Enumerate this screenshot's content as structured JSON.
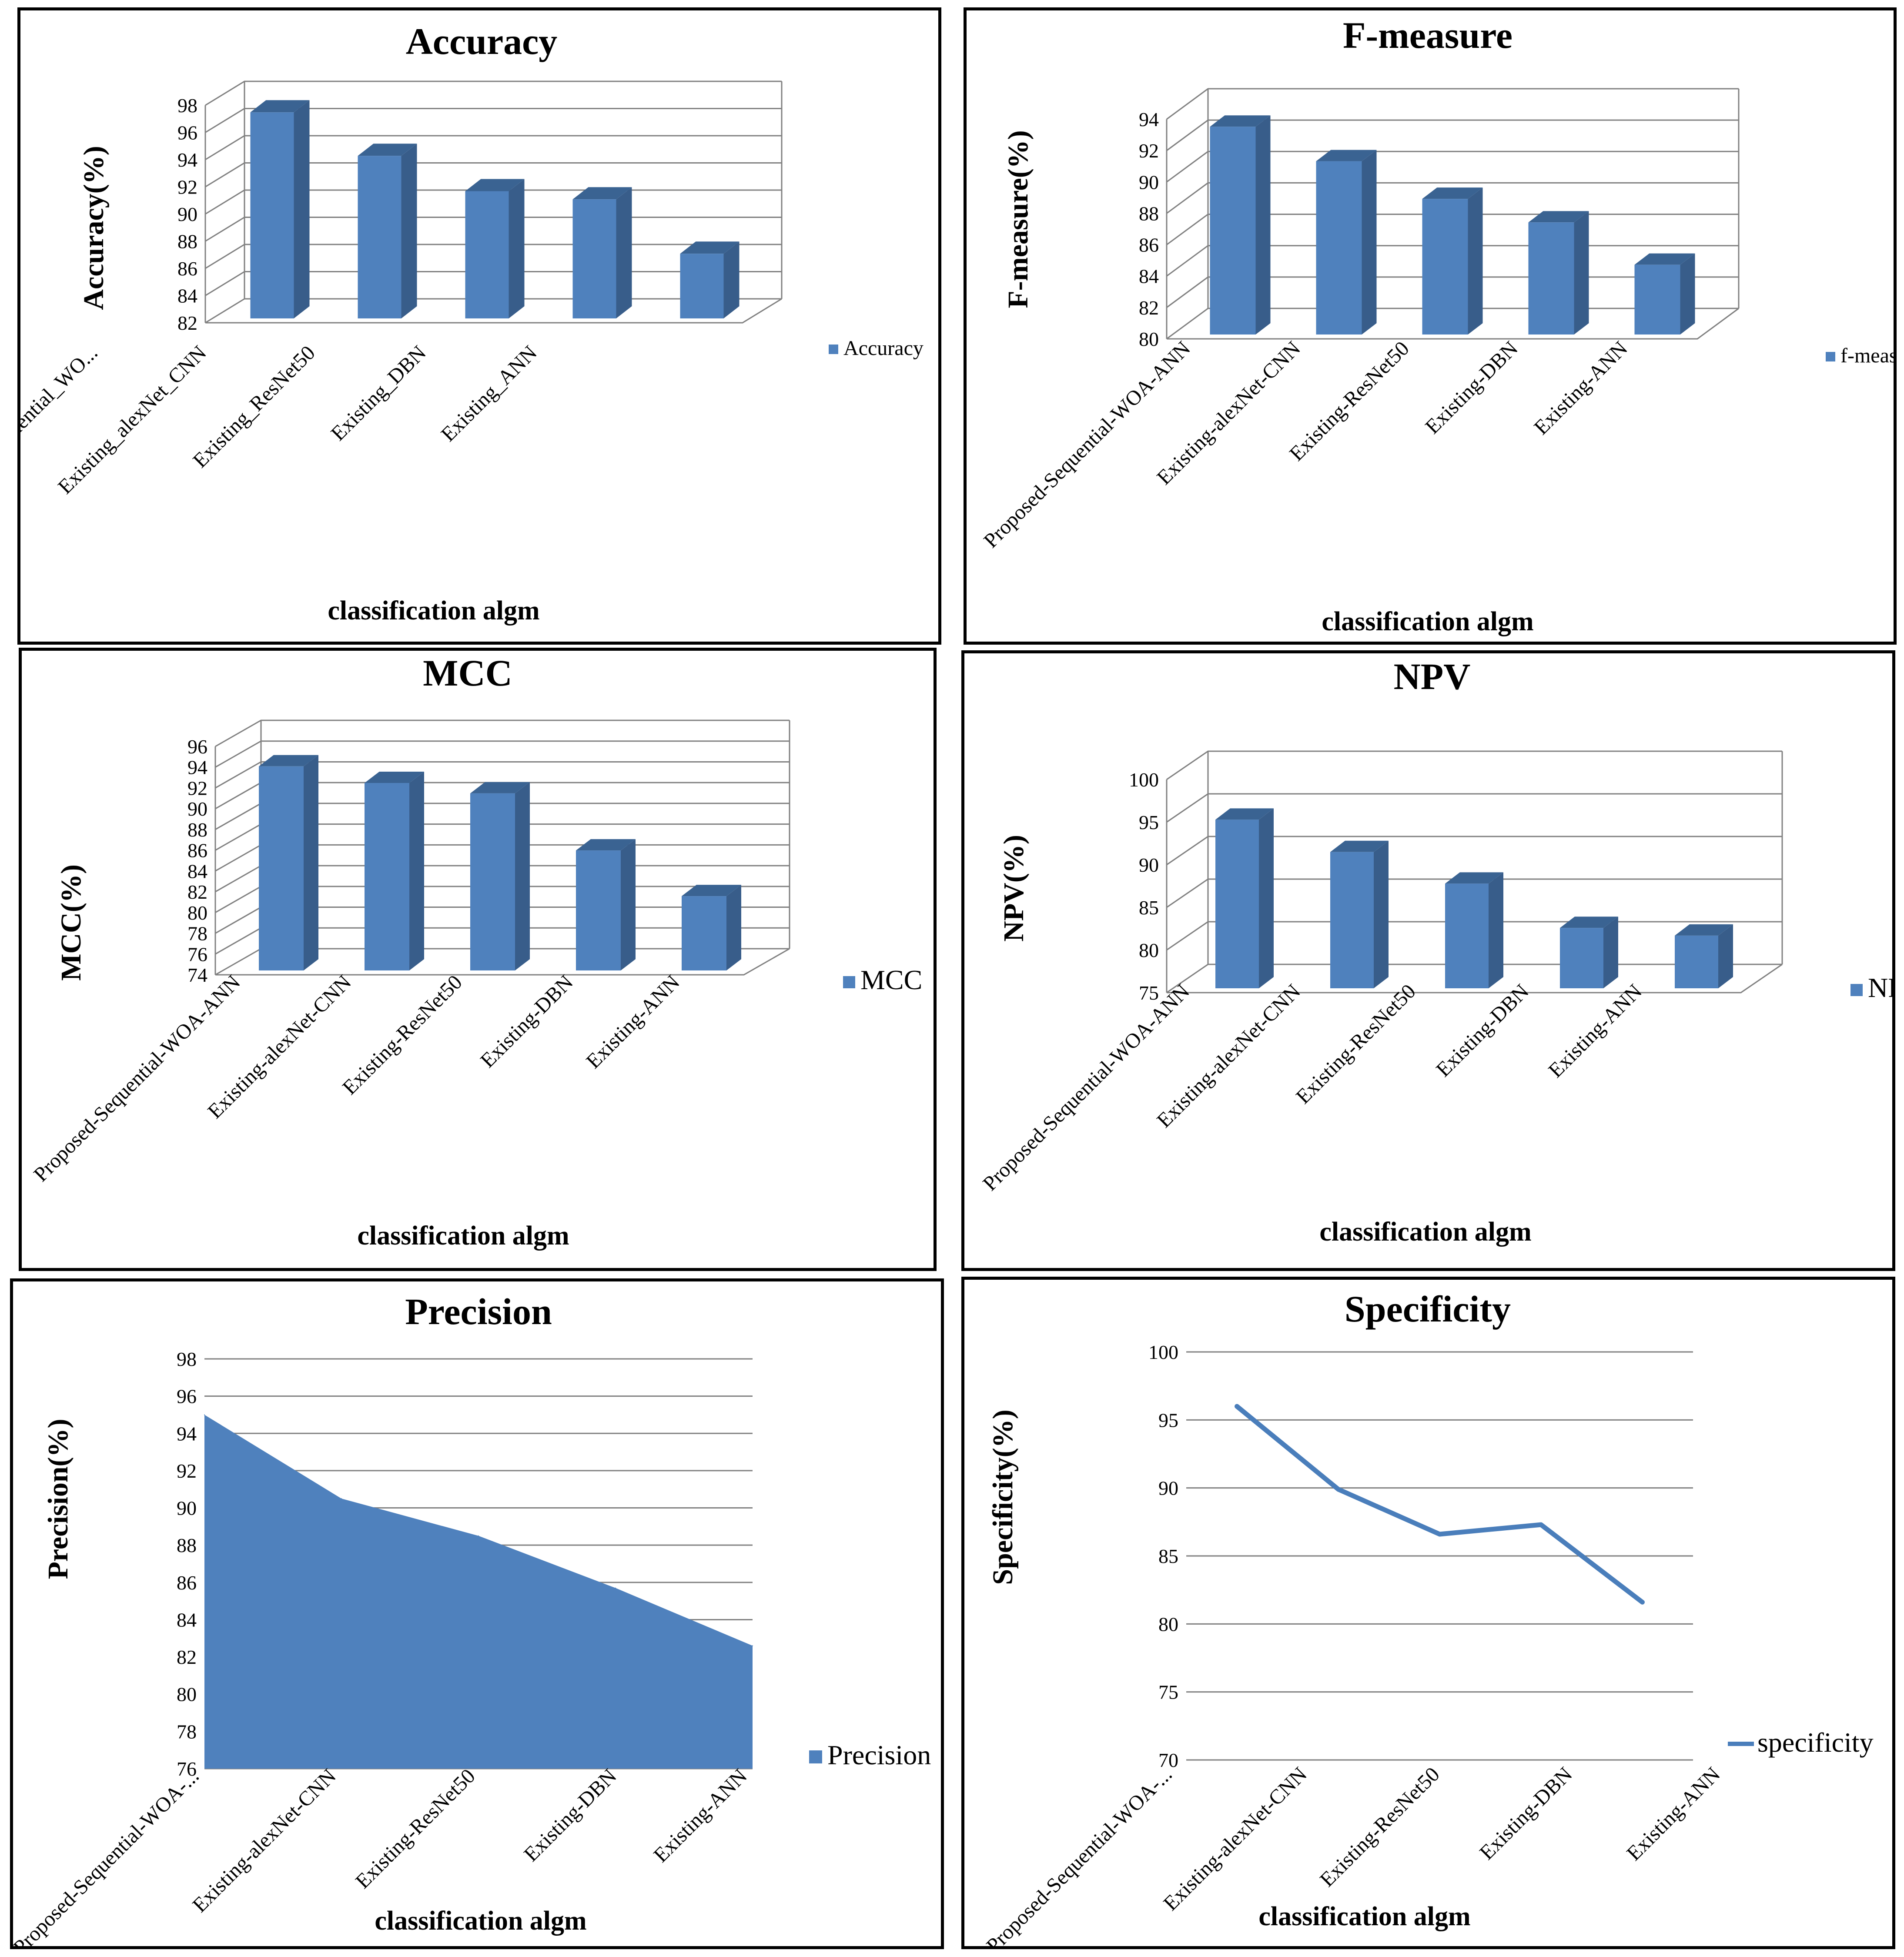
{
  "chart_data": [
    {
      "type": "bar",
      "title": "Accuracy",
      "ylabel": "Accuracy(%)",
      "xlabel": "classification algm",
      "legend": "Accuracy",
      "categories": [
        "Proposed_Sequential_WO...",
        "Existing_alexNet_CNN",
        "Existing_ResNet50",
        "Existing_DBN",
        "Existing_ANN"
      ],
      "values": [
        97.8,
        94.6,
        92,
        91.4,
        87.4
      ],
      "ylim": [
        82,
        98
      ],
      "yticks": [
        82,
        84,
        86,
        88,
        90,
        92,
        94,
        96,
        98
      ]
    },
    {
      "type": "bar",
      "title": "F-measure",
      "ylabel": "F-measure(%)",
      "xlabel": "classification algm",
      "legend": "f-measure",
      "categories": [
        "Proposed-Sequential-WOA-ANN",
        "Existing-alexNet-CNN",
        "Existing-ResNet50",
        "Existing-DBN",
        "Existing-ANN"
      ],
      "values": [
        93.8,
        91.6,
        89.2,
        87.7,
        85
      ],
      "ylim": [
        80,
        94
      ],
      "yticks": [
        80,
        82,
        84,
        86,
        88,
        90,
        92,
        94
      ]
    },
    {
      "type": "bar",
      "title": "MCC",
      "ylabel": "MCC(%)",
      "xlabel": "classification algm",
      "legend": "MCC",
      "categories": [
        "Proposed-Sequential-WOA-ANN",
        "Existing-alexNet-CNN",
        "Existing-ResNet50",
        "Existing-DBN",
        "Existing-ANN"
      ],
      "values": [
        94.5,
        92.9,
        91.9,
        86.4,
        82
      ],
      "ylim": [
        74,
        96
      ],
      "yticks": [
        74,
        76,
        78,
        80,
        82,
        84,
        86,
        88,
        90,
        92,
        94,
        96
      ]
    },
    {
      "type": "bar",
      "title": "NPV",
      "ylabel": "NPV(%)",
      "xlabel": "classification algm",
      "legend": "NPV",
      "categories": [
        "Proposed-Sequential-WOA-ANN",
        "Existing-alexNet-CNN",
        "Existing-ResNet50",
        "Existing-DBN",
        "Existing-ANN"
      ],
      "values": [
        95.8,
        92,
        88.3,
        83.1,
        82.2
      ],
      "ylim": [
        75,
        100
      ],
      "yticks": [
        75,
        80,
        85,
        90,
        95,
        100
      ]
    },
    {
      "type": "area",
      "title": "Precision",
      "ylabel": "Precision(%)",
      "xlabel": "classification algm",
      "legend": "Precision",
      "categories": [
        "Proposed-Sequential-WOA-...",
        "Existing-alexNet-CNN",
        "Existing-ResNet50",
        "Existing-DBN",
        "Existing-ANN"
      ],
      "values": [
        95,
        90.5,
        88.5,
        85.7,
        82.6
      ],
      "ylim": [
        76,
        98
      ],
      "yticks": [
        76,
        78,
        80,
        82,
        84,
        86,
        88,
        90,
        92,
        94,
        96,
        98
      ]
    },
    {
      "type": "line",
      "title": "Specificity",
      "ylabel": "Specificity(%)",
      "xlabel": "classification algm",
      "legend": "specificity",
      "categories": [
        "Proposed-Sequential-WOA-...",
        "Existing-alexNet-CNN",
        "Existing-ResNet50",
        "Existing-DBN",
        "Existing-ANN"
      ],
      "values": [
        96,
        89.9,
        86.6,
        87.3,
        81.6
      ],
      "ylim": [
        70,
        100
      ],
      "yticks": [
        70,
        75,
        80,
        85,
        90,
        95,
        100
      ]
    }
  ],
  "colors": {
    "bar_front": "#4f81bd",
    "bar_side": "#385d8a",
    "bar_top": "#3a6392",
    "line": "#4a7ebb",
    "area": "#4f81bd"
  }
}
